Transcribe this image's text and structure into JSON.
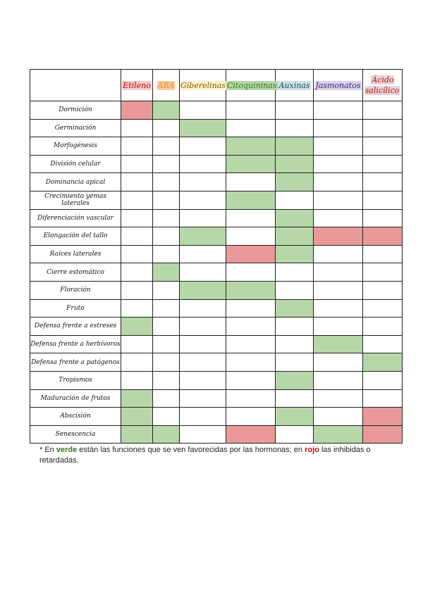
{
  "table": {
    "headers": [
      {
        "label": "Etileno",
        "color": "#cc0000",
        "highlight": "#f4cccc"
      },
      {
        "label": "ABA",
        "color": "#e69138",
        "highlight": "#f9cb9c"
      },
      {
        "label": "Giberelinas",
        "color": "#7f6000",
        "highlight": "#fff2cc"
      },
      {
        "label": "Citoquininas",
        "color": "#38761d",
        "highlight": "#b6d7a8"
      },
      {
        "label": "Auxinas",
        "color": "#134f5c",
        "highlight": "#d0e0e3"
      },
      {
        "label": "Jasmonatos",
        "color": "#351c75",
        "highlight": "#d9d2e9"
      },
      {
        "label": "Ácido salicílico",
        "color": "#a61c00",
        "highlight": "#ead1dc"
      }
    ],
    "rows": [
      {
        "label": "Dormición",
        "cells": [
          "#ea9999",
          "#b6d7a8",
          null,
          null,
          null,
          null,
          null
        ]
      },
      {
        "label": "Germinación",
        "cells": [
          null,
          null,
          "#b6d7a8",
          null,
          null,
          null,
          null
        ]
      },
      {
        "label": "Morfogénesis",
        "cells": [
          null,
          null,
          null,
          "#b6d7a8",
          "#b6d7a8",
          null,
          null
        ]
      },
      {
        "label": "División celular",
        "cells": [
          null,
          null,
          null,
          "#b6d7a8",
          "#b6d7a8",
          null,
          null
        ]
      },
      {
        "label": "Dominancia apical",
        "cells": [
          null,
          null,
          null,
          null,
          "#b6d7a8",
          null,
          null
        ]
      },
      {
        "label": "Crecimiento yemas laterales",
        "cells": [
          null,
          null,
          null,
          "#b6d7a8",
          null,
          null,
          null
        ]
      },
      {
        "label": "Diferenciación vascular",
        "cells": [
          null,
          null,
          null,
          null,
          "#b6d7a8",
          null,
          null
        ]
      },
      {
        "label": "Elongación del tallo",
        "cells": [
          null,
          null,
          "#b6d7a8",
          null,
          "#b6d7a8",
          "#ea9999",
          "#ea9999"
        ]
      },
      {
        "label": "Raíces laterales",
        "cells": [
          null,
          null,
          null,
          "#ea9999",
          "#b6d7a8",
          null,
          null
        ]
      },
      {
        "label": "Cierre estomático",
        "cells": [
          null,
          "#b6d7a8",
          null,
          null,
          null,
          null,
          null
        ]
      },
      {
        "label": "Floración",
        "cells": [
          null,
          null,
          "#b6d7a8",
          "#b6d7a8",
          null,
          null,
          null
        ]
      },
      {
        "label": "Fruto",
        "cells": [
          null,
          null,
          null,
          null,
          "#b6d7a8",
          null,
          null
        ]
      },
      {
        "label": "Defensa frente a estreses",
        "cells": [
          "#b6d7a8",
          null,
          null,
          null,
          null,
          null,
          null
        ]
      },
      {
        "label": "Defensa frente a herbívoros",
        "cells": [
          null,
          null,
          null,
          null,
          null,
          "#b6d7a8",
          null
        ]
      },
      {
        "label": "Defensa frente a patógenos",
        "cells": [
          null,
          null,
          null,
          null,
          null,
          null,
          "#b6d7a8"
        ]
      },
      {
        "label": "Tropismos",
        "cells": [
          null,
          null,
          null,
          null,
          "#b6d7a8",
          null,
          null
        ]
      },
      {
        "label": "Maduración de frutos",
        "cells": [
          "#b6d7a8",
          null,
          null,
          null,
          null,
          null,
          null
        ]
      },
      {
        "label": "Abscisión",
        "cells": [
          "#b6d7a8",
          null,
          null,
          null,
          "#b6d7a8",
          null,
          "#ea9999"
        ]
      },
      {
        "label": "Senescencia",
        "cells": [
          "#b6d7a8",
          "#b6d7a8",
          null,
          "#ea9999",
          null,
          "#b6d7a8",
          "#ea9999"
        ]
      }
    ]
  },
  "note": {
    "prefix": "* En",
    "green_word": "verde",
    "green_color": "#38761d",
    "middle": "están las funciones que se ven favorecidas por las hormonas; en",
    "red_word": "rojo",
    "red_color": "#cc0000",
    "suffix": "las inhibidas o retardadas."
  }
}
